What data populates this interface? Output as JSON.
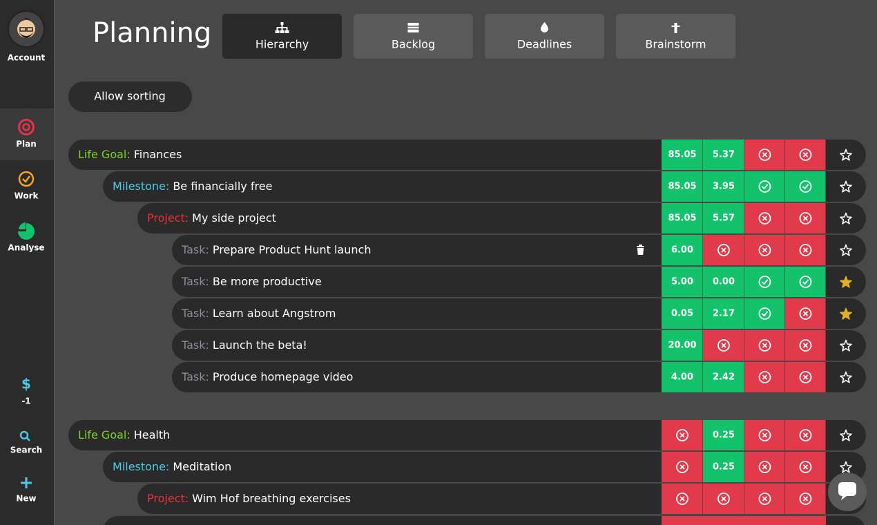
{
  "sidebar": {
    "account": "Account",
    "items": [
      "Plan",
      "Work",
      "Analyse"
    ],
    "balance_symbol": "$",
    "balance": "-1",
    "search": "Search",
    "new": "New"
  },
  "header": {
    "title": "Planning",
    "tabs": [
      "Hierarchy",
      "Backlog",
      "Deadlines",
      "Brainstorm"
    ],
    "active_tab": 0
  },
  "sort_button": "Allow sorting",
  "cell_colors": {
    "value": "#13c26b",
    "check": "#13c26b",
    "x": "#e13a4b"
  },
  "groups": [
    {
      "rows": [
        {
          "level": 0,
          "prefix": "Life Goal:",
          "prefix_color": "#7ed321",
          "name": "Finances",
          "trash": false,
          "starred": false,
          "cells": [
            "85.05",
            "5.37",
            {
              "icon": "x"
            },
            {
              "icon": "x"
            }
          ]
        },
        {
          "level": 1,
          "prefix": "Milestone:",
          "prefix_color": "#50c8e8",
          "name": "Be financially free",
          "trash": false,
          "starred": false,
          "cells": [
            "85.05",
            "3.95",
            {
              "icon": "check"
            },
            {
              "icon": "check"
            }
          ]
        },
        {
          "level": 2,
          "prefix": "Project:",
          "prefix_color": "#e8323c",
          "name": "My side project",
          "trash": false,
          "starred": false,
          "cells": [
            "85.05",
            "5.57",
            {
              "icon": "x"
            },
            {
              "icon": "x"
            }
          ]
        },
        {
          "level": 3,
          "prefix": "Task:",
          "prefix_color": "#8a8c9c",
          "name": "Prepare Product Hunt launch",
          "trash": true,
          "starred": false,
          "cells": [
            "6.00",
            {
              "icon": "x"
            },
            {
              "icon": "x"
            },
            {
              "icon": "x"
            }
          ]
        },
        {
          "level": 3,
          "prefix": "Task:",
          "prefix_color": "#8a8c9c",
          "name": "Be more productive",
          "trash": true,
          "starred": true,
          "cells": [
            "5.00",
            "0.00",
            {
              "icon": "check"
            },
            {
              "icon": "check"
            }
          ]
        },
        {
          "level": 3,
          "prefix": "Task:",
          "prefix_color": "#8a8c9c",
          "name": "Learn about Angstrom",
          "trash": true,
          "starred": true,
          "cells": [
            "0.05",
            "2.17",
            {
              "icon": "check"
            },
            {
              "icon": "x"
            }
          ]
        },
        {
          "level": 3,
          "prefix": "Task:",
          "prefix_color": "#8a8c9c",
          "name": "Launch the beta!",
          "trash": true,
          "starred": false,
          "cells": [
            "20.00",
            {
              "icon": "x"
            },
            {
              "icon": "x"
            },
            {
              "icon": "x"
            }
          ]
        },
        {
          "level": 3,
          "prefix": "Task:",
          "prefix_color": "#8a8c9c",
          "name": "Produce homepage video",
          "trash": true,
          "starred": false,
          "cells": [
            "4.00",
            "2.42",
            {
              "icon": "x"
            },
            {
              "icon": "x"
            }
          ]
        }
      ]
    },
    {
      "rows": [
        {
          "level": 0,
          "prefix": "Life Goal:",
          "prefix_color": "#7ed321",
          "name": "Health",
          "trash": false,
          "starred": false,
          "cells": [
            {
              "icon": "x"
            },
            "0.25",
            {
              "icon": "x"
            },
            {
              "icon": "x"
            }
          ]
        },
        {
          "level": 1,
          "prefix": "Milestone:",
          "prefix_color": "#50c8e8",
          "name": "Meditation",
          "trash": false,
          "starred": false,
          "cells": [
            {
              "icon": "x"
            },
            "0.25",
            {
              "icon": "x"
            },
            {
              "icon": "x"
            }
          ]
        },
        {
          "level": 2,
          "prefix": "Project:",
          "prefix_color": "#e8323c",
          "name": "Wim Hof breathing exercises",
          "trash": true,
          "starred": false,
          "cells": [
            {
              "icon": "x"
            },
            {
              "icon": "x"
            },
            {
              "icon": "x"
            },
            {
              "icon": "x"
            }
          ]
        }
      ]
    }
  ]
}
